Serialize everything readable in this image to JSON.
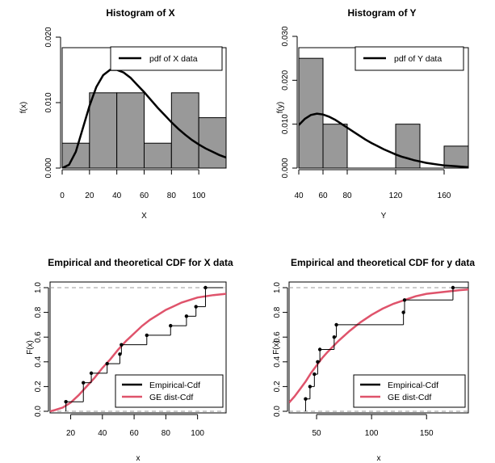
{
  "chart_data": [
    {
      "type": "bar",
      "title": "Histogram of X",
      "xlabel": "X",
      "ylabel": "f(x)",
      "xlim": [
        0,
        120
      ],
      "ylim": [
        0,
        0.02
      ],
      "xticks": [
        0,
        20,
        40,
        60,
        80,
        100
      ],
      "yticks": [
        "0.000",
        "0.010",
        "0.020"
      ],
      "bins": [
        [
          0,
          20
        ],
        [
          20,
          40
        ],
        [
          40,
          60
        ],
        [
          60,
          80
        ],
        [
          80,
          100
        ],
        [
          100,
          120
        ]
      ],
      "values": [
        0.0038,
        0.0115,
        0.0115,
        0.0038,
        0.0115,
        0.0077
      ],
      "legend": [
        {
          "label": "pdf of X data",
          "color": "#000000"
        }
      ],
      "legend_position": "top-right",
      "series": [
        {
          "name": "pdf of X data",
          "type": "line",
          "x": [
            0,
            5,
            10,
            15,
            20,
            25,
            30,
            35,
            40,
            45,
            50,
            55,
            60,
            65,
            70,
            75,
            80,
            85,
            90,
            95,
            100,
            105,
            110,
            115,
            120
          ],
          "y": [
            0,
            0.0005,
            0.0025,
            0.006,
            0.0095,
            0.0124,
            0.0142,
            0.015,
            0.015,
            0.0146,
            0.0138,
            0.0127,
            0.0116,
            0.0104,
            0.0092,
            0.0081,
            0.007,
            0.006,
            0.0051,
            0.0043,
            0.0036,
            0.003,
            0.0025,
            0.002,
            0.0016
          ]
        }
      ]
    },
    {
      "type": "bar",
      "title": "Histogram of Y",
      "xlabel": "Y",
      "ylabel": "f(y)",
      "xlim": [
        40,
        180
      ],
      "ylim": [
        0,
        0.03
      ],
      "xticks": [
        40,
        60,
        80,
        120,
        160
      ],
      "yticks": [
        "0.000",
        "0.010",
        "0.020",
        "0.030"
      ],
      "bins": [
        [
          40,
          60
        ],
        [
          60,
          80
        ],
        [
          80,
          100
        ],
        [
          100,
          120
        ],
        [
          120,
          140
        ],
        [
          140,
          160
        ],
        [
          160,
          180
        ]
      ],
      "values": [
        0.025,
        0.01,
        0,
        0,
        0.01,
        0,
        0.005
      ],
      "legend": [
        {
          "label": "pdf of Y data",
          "color": "#000000"
        }
      ],
      "legend_position": "top-right",
      "series": [
        {
          "name": "pdf of Y data",
          "type": "line",
          "x": [
            40,
            45,
            50,
            55,
            60,
            65,
            70,
            75,
            80,
            85,
            90,
            95,
            100,
            105,
            110,
            115,
            120,
            125,
            130,
            135,
            140,
            145,
            150,
            155,
            160,
            165,
            170,
            175,
            180
          ],
          "y": [
            0.0098,
            0.0112,
            0.0121,
            0.0124,
            0.0122,
            0.0117,
            0.011,
            0.0101,
            0.0092,
            0.0083,
            0.0074,
            0.0065,
            0.0057,
            0.005,
            0.0043,
            0.0037,
            0.0031,
            0.0026,
            0.0022,
            0.0018,
            0.0015,
            0.0012,
            0.001,
            0.0008,
            0.0006,
            0.0005,
            0.0004,
            0.0003,
            0.0002
          ]
        }
      ]
    },
    {
      "type": "line",
      "title": "Empirical and theoretical CDF for X data",
      "xlabel": "x",
      "ylabel": "F(x)",
      "xlim": [
        7,
        118
      ],
      "ylim": [
        0,
        1
      ],
      "xticks": [
        20,
        40,
        60,
        80,
        100
      ],
      "yticks": [
        "0.0",
        "0.2",
        "0.4",
        "0.6",
        "0.8",
        "1.0"
      ],
      "legend": [
        {
          "label": "Empirical-Cdf",
          "color": "#000000"
        },
        {
          "label": "GE dist-Cdf",
          "color": "#df536b"
        }
      ],
      "legend_position": "bottom-right",
      "series": [
        {
          "name": "Empirical-Cdf",
          "type": "step",
          "x": [
            17,
            28,
            33,
            43,
            51,
            52,
            68,
            83,
            93,
            99,
            105
          ],
          "y": [
            0.077,
            0.231,
            0.308,
            0.385,
            0.462,
            0.538,
            0.615,
            0.692,
            0.769,
            0.846,
            1.0
          ]
        },
        {
          "name": "GE dist-Cdf",
          "type": "line",
          "x": [
            7,
            10,
            15,
            20,
            25,
            30,
            35,
            40,
            45,
            50,
            55,
            60,
            65,
            70,
            75,
            80,
            85,
            90,
            95,
            100,
            105,
            110,
            118
          ],
          "y": [
            0.0,
            0.01,
            0.03,
            0.07,
            0.13,
            0.2,
            0.27,
            0.35,
            0.42,
            0.5,
            0.57,
            0.63,
            0.69,
            0.74,
            0.78,
            0.82,
            0.85,
            0.88,
            0.9,
            0.92,
            0.93,
            0.94,
            0.95
          ]
        }
      ]
    },
    {
      "type": "line",
      "title": "Empirical and theoretical CDF for y data",
      "xlabel": "x",
      "ylabel": "F(x)",
      "xlim": [
        25,
        188
      ],
      "ylim": [
        0,
        1
      ],
      "xticks": [
        50,
        100,
        150
      ],
      "yticks": [
        "0.0",
        "0.2",
        "0.4",
        "0.6",
        "0.8",
        "1.0"
      ],
      "legend": [
        {
          "label": "Empirical-Cdf",
          "color": "#000000"
        },
        {
          "label": "GE dist-Cdf",
          "color": "#df536b"
        }
      ],
      "legend_position": "bottom-right",
      "series": [
        {
          "name": "Empirical-Cdf",
          "type": "step",
          "x": [
            40,
            44,
            48,
            51,
            53,
            66,
            68,
            129,
            130,
            174
          ],
          "y": [
            0.1,
            0.2,
            0.3,
            0.4,
            0.5,
            0.6,
            0.7,
            0.8,
            0.9,
            1.0
          ]
        },
        {
          "name": "GE dist-Cdf",
          "type": "line",
          "x": [
            25,
            30,
            35,
            40,
            45,
            50,
            55,
            60,
            70,
            80,
            90,
            100,
            110,
            120,
            130,
            140,
            150,
            160,
            170,
            180,
            188
          ],
          "y": [
            0.07,
            0.12,
            0.18,
            0.24,
            0.31,
            0.37,
            0.43,
            0.48,
            0.57,
            0.65,
            0.72,
            0.78,
            0.83,
            0.87,
            0.9,
            0.93,
            0.95,
            0.96,
            0.97,
            0.98,
            0.985
          ]
        }
      ]
    }
  ]
}
